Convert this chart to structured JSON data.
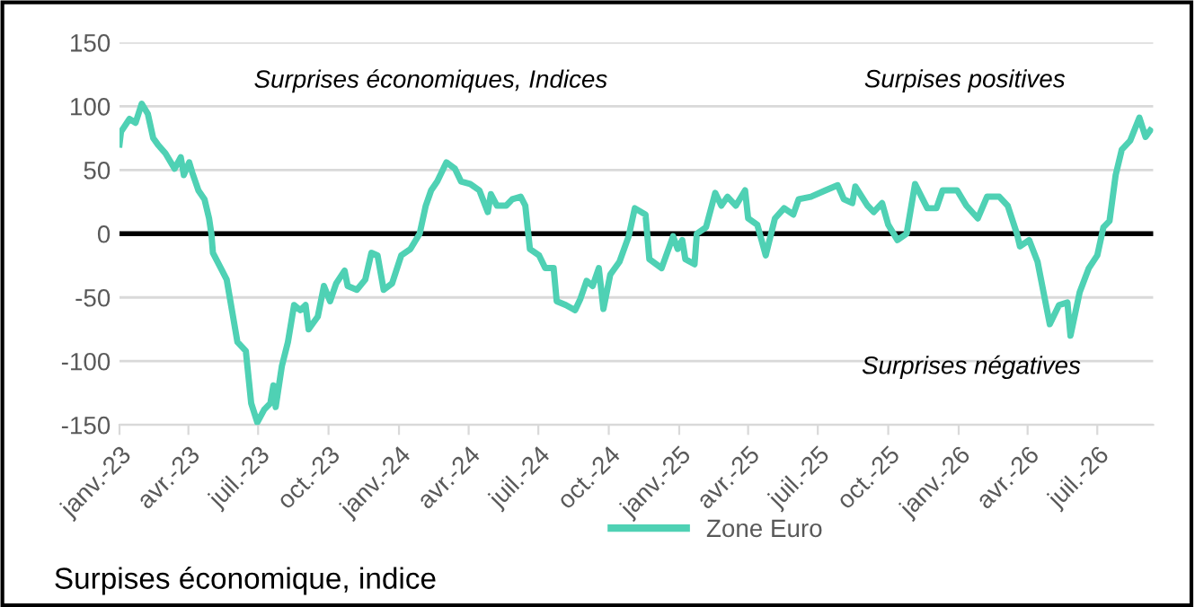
{
  "chart_data": {
    "type": "line",
    "title": "Surpises économique, indice",
    "annotations": [
      "Surprises économiques, Indices",
      "Surpises positives",
      "Surprises négatives"
    ],
    "x": [
      "2023-01-01",
      "2023-01-03",
      "2023-01-14",
      "2023-01-22",
      "2023-01-30",
      "2023-02-07",
      "2023-02-14",
      "2023-02-20",
      "2023-03-02",
      "2023-03-14",
      "2023-03-22",
      "2023-03-26",
      "2023-04-02",
      "2023-04-06",
      "2023-04-14",
      "2023-04-22",
      "2023-04-28",
      "2023-05-01",
      "2023-05-03",
      "2023-05-15",
      "2023-05-21",
      "2023-06-04",
      "2023-06-15",
      "2023-06-22",
      "2023-06-30",
      "2023-07-09",
      "2023-07-17",
      "2023-07-21",
      "2023-07-24",
      "2023-08-01",
      "2023-08-09",
      "2023-08-17",
      "2023-08-25",
      "2023-09-01",
      "2023-09-05",
      "2023-09-17",
      "2023-09-25",
      "2023-10-03",
      "2023-10-11",
      "2023-10-22",
      "2023-10-26",
      "2023-11-07",
      "2023-11-18",
      "2023-11-26",
      "2023-12-04",
      "2023-12-12",
      "2023-12-23",
      "2024-01-04",
      "2024-01-16",
      "2024-01-28",
      "2024-02-05",
      "2024-02-12",
      "2024-02-20",
      "2024-03-03",
      "2024-03-14",
      "2024-03-22",
      "2024-04-03",
      "2024-04-15",
      "2024-04-26",
      "2024-04-30",
      "2024-05-08",
      "2024-05-20",
      "2024-05-28",
      "2024-06-08",
      "2024-06-14",
      "2024-06-20",
      "2024-07-02",
      "2024-07-10",
      "2024-07-21",
      "2024-07-25",
      "2024-08-06",
      "2024-08-18",
      "2024-08-25",
      "2024-09-02",
      "2024-09-10",
      "2024-09-18",
      "2024-09-24",
      "2024-10-03",
      "2024-10-15",
      "2024-10-27",
      "2024-11-04",
      "2024-11-18",
      "2024-11-23",
      "2024-12-09",
      "2024-12-24",
      "2024-12-30",
      "2025-01-05",
      "2025-01-09",
      "2025-01-21",
      "2025-01-24",
      "2025-02-05",
      "2025-02-17",
      "2025-02-25",
      "2025-03-05",
      "2025-03-16",
      "2025-03-28",
      "2025-04-01",
      "2025-04-13",
      "2025-04-24",
      "2025-05-06",
      "2025-05-18",
      "2025-05-30",
      "2025-06-06",
      "2025-06-22",
      "2025-07-11",
      "2025-07-27",
      "2025-08-04",
      "2025-08-15",
      "2025-08-19",
      "2025-09-04",
      "2025-09-12",
      "2025-09-23",
      "2025-10-01",
      "2025-10-13",
      "2025-10-25",
      "2025-11-05",
      "2025-11-21",
      "2025-12-03",
      "2025-12-11",
      "2025-12-30",
      "2026-01-11",
      "2026-01-26",
      "2026-02-07",
      "2026-02-23",
      "2026-03-06",
      "2026-03-18",
      "2026-03-22",
      "2026-04-03",
      "2026-04-14",
      "2026-04-30",
      "2026-05-12",
      "2026-05-23",
      "2026-05-27",
      "2026-06-08",
      "2026-06-20",
      "2026-07-01",
      "2026-07-09",
      "2026-07-17",
      "2026-07-25",
      "2026-08-02",
      "2026-08-13",
      "2026-08-25",
      "2026-09-02",
      "2026-09-08"
    ],
    "series": [
      {
        "name": "Zone Euro",
        "color": "#4fd1b4",
        "values": [
          70,
          80,
          90,
          87,
          102,
          94,
          75,
          70,
          63,
          51,
          60,
          46,
          56,
          48,
          34,
          27,
          12,
          0,
          -15,
          -29,
          -36,
          -85,
          -92,
          -133,
          -148,
          -138,
          -133,
          -119,
          -136,
          -104,
          -85,
          -56,
          -60,
          -56,
          -75,
          -65,
          -41,
          -53,
          -39,
          -29,
          -41,
          -44,
          -36,
          -15,
          -17,
          -44,
          -39,
          -17,
          -12,
          0,
          22,
          34,
          41,
          56,
          51,
          41,
          39,
          34,
          17,
          31,
          22,
          22,
          27,
          29,
          22,
          -12,
          -17,
          -27,
          -27,
          -53,
          -56,
          -60,
          -51,
          -37,
          -41,
          -27,
          -59,
          -32,
          -22,
          -2,
          20,
          15,
          -20,
          -27,
          -2,
          -12,
          -5,
          -20,
          -24,
          0,
          5,
          32,
          22,
          29,
          22,
          34,
          12,
          7,
          -17,
          12,
          20,
          15,
          27,
          29,
          34,
          38,
          27,
          24,
          37,
          22,
          17,
          24,
          7,
          -5,
          0,
          39,
          20,
          20,
          34,
          34,
          22,
          12,
          29,
          29,
          22,
          0,
          -10,
          -5,
          -22,
          -71,
          -56,
          -54,
          -80,
          -46,
          -27,
          -17,
          5,
          10,
          46,
          66,
          73,
          91,
          76,
          81
        ]
      }
    ],
    "xlim": [
      "2023-01-01",
      "2026-09-12"
    ],
    "xticks": [
      {
        "value": "2023-01-01",
        "label": "janv.-23"
      },
      {
        "value": "2023-04-01",
        "label": "avr.-23"
      },
      {
        "value": "2023-07-01",
        "label": "juil.-23"
      },
      {
        "value": "2023-10-01",
        "label": "oct.-23"
      },
      {
        "value": "2024-01-01",
        "label": "janv.-24"
      },
      {
        "value": "2024-04-01",
        "label": "avr.-24"
      },
      {
        "value": "2024-07-01",
        "label": "juil.-24"
      },
      {
        "value": "2024-10-01",
        "label": "oct.-24"
      },
      {
        "value": "2025-01-01",
        "label": "janv.-25"
      },
      {
        "value": "2025-04-01",
        "label": "avr.-25"
      },
      {
        "value": "2025-07-01",
        "label": "juil.-25"
      },
      {
        "value": "2025-10-01",
        "label": "oct.-25"
      },
      {
        "value": "2026-01-01",
        "label": "janv.-26"
      },
      {
        "value": "2026-04-01",
        "label": "avr.-26"
      },
      {
        "value": "2026-07-01",
        "label": "juil.-26"
      }
    ],
    "ylim": [
      -150,
      150
    ],
    "yticks": [
      -150,
      -100,
      -50,
      0,
      50,
      100,
      150
    ],
    "ref_lines": [
      {
        "axis": "y",
        "value": 0,
        "color": "#000000"
      }
    ],
    "grid": "y",
    "legend": "bottom",
    "marker": "none",
    "line_style": "solid"
  }
}
